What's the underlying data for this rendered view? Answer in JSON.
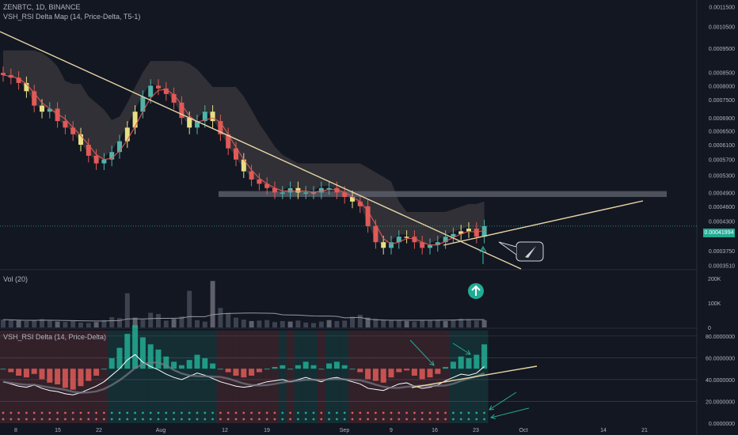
{
  "colors": {
    "background": "#131722",
    "up": "#4fb3a9",
    "down": "#e05a57",
    "neutral": "#e8df85",
    "trendline": "#e8d6a6",
    "band": "#5d606b",
    "cloud": "#3b3a3d",
    "accent": "#22ab94"
  },
  "header": {
    "symbol_line": "ZENBTC, 1D, BINANCE",
    "indicator_line": "VSH_RSI Delta Map (14, Price-Delta, T5-1)"
  },
  "volume_panel": {
    "label": "Vol (20)"
  },
  "rsi_panel": {
    "label": "VSH_RSI Delta (14, Price-Delta)"
  },
  "price_badge": {
    "price": "0.00041994"
  },
  "icons": {
    "up_arrow": "circled-up-arrow-icon",
    "rocket": "rocket-icon"
  },
  "chart_data": [
    {
      "type": "candlestick",
      "title": "ZENBTC, 1D, BINANCE",
      "x_tick_labels": [
        "8",
        "15",
        "22",
        "Aug",
        "12",
        "19",
        "Sep",
        "9",
        "16",
        "23",
        "Oct",
        "14",
        "21"
      ],
      "y_tick_labels": [
        "0.0011500",
        "0.0010500",
        "0.0009500",
        "0.0008500",
        "0.0008000",
        "0.0007500",
        "0.0006900",
        "0.0006500",
        "0.0006100",
        "0.0005700",
        "0.0005300",
        "0.0004900",
        "0.0004600",
        "0.0004300",
        "0.0003750",
        "0.0003510"
      ],
      "ylim": [
        0.000345,
        0.00116
      ],
      "y_scale": "log",
      "close_series": [
        0.00084,
        0.00083,
        0.00081,
        0.00078,
        0.00073,
        0.00071,
        0.00072,
        0.00068,
        0.00066,
        0.00064,
        0.00061,
        0.00058,
        0.00056,
        0.00057,
        0.00059,
        0.00062,
        0.00066,
        0.00071,
        0.00076,
        0.0008,
        0.00079,
        0.00077,
        0.00074,
        0.00069,
        0.00066,
        0.00068,
        0.00071,
        0.00068,
        0.00064,
        0.0006,
        0.00057,
        0.00054,
        0.00052,
        0.00051,
        0.0005,
        0.00049,
        0.00049,
        0.0005,
        0.00049,
        0.00049,
        0.00049,
        0.0005,
        0.0005,
        0.00049,
        0.00048,
        0.00047,
        0.00046,
        0.00042,
        0.00039,
        0.00038,
        0.00039,
        0.0004,
        0.0004,
        0.00039,
        0.00038,
        0.000385,
        0.00039,
        0.0004,
        0.000405,
        0.00041,
        0.000415,
        0.0004,
        0.00042
      ],
      "neutral_candles_shown": true,
      "cloud_band": true,
      "horizontal_zone": [
        0.00048,
        0.000493
      ],
      "last_price": 0.00041994,
      "trendlines": [
        {
          "from": [
            "2019-07-01",
            0.00101
          ],
          "to": [
            "2019-09-25",
            0.00034
          ]
        },
        {
          "from": [
            "2019-09-18",
            0.000405
          ],
          "to": [
            "2019-10-19",
            0.000495
          ]
        }
      ]
    },
    {
      "type": "bar",
      "title": "Vol (20)",
      "y_tick_labels": [
        "200K",
        "100K",
        "0"
      ],
      "ylim": [
        0,
        220000
      ],
      "values": [
        32000,
        30000,
        28000,
        26000,
        30000,
        34000,
        28000,
        24000,
        22000,
        26000,
        20000,
        18000,
        22000,
        30000,
        42000,
        38000,
        140000,
        40000,
        32000,
        60000,
        55000,
        28000,
        35000,
        45000,
        150000,
        30000,
        24000,
        190000,
        80000,
        60000,
        40000,
        32000,
        26000,
        28000,
        30000,
        22000,
        26000,
        24000,
        28000,
        20000,
        18000,
        24000,
        30000,
        26000,
        28000,
        44000,
        52000,
        40000,
        36000,
        32000,
        28000,
        30000,
        26000,
        24000,
        30000,
        28000,
        32000,
        26000,
        30000,
        36000,
        34000,
        28000,
        30000
      ],
      "moving_average": true
    },
    {
      "type": "line",
      "title": "VSH_RSI Delta (14, Price-Delta)",
      "y_tick_labels": [
        "80.0000000",
        "60.0000000",
        "40.0000000",
        "20.0000000",
        "0.0000000"
      ],
      "ylim": [
        0,
        85
      ],
      "rsi": [
        38,
        36,
        34,
        33,
        35,
        32,
        30,
        29,
        27,
        26,
        28,
        31,
        34,
        38,
        44,
        50,
        58,
        63,
        56,
        52,
        49,
        45,
        42,
        40,
        43,
        46,
        44,
        41,
        38,
        36,
        34,
        33,
        34,
        36,
        38,
        39,
        40,
        38,
        40,
        42,
        40,
        38,
        41,
        42,
        40,
        38,
        36,
        32,
        31,
        30,
        33,
        36,
        37,
        34,
        32,
        33,
        35,
        39,
        42,
        45,
        44,
        46,
        52
      ],
      "level_lines": [
        80,
        60,
        40,
        20
      ],
      "annotation_arrows": 4
    }
  ]
}
